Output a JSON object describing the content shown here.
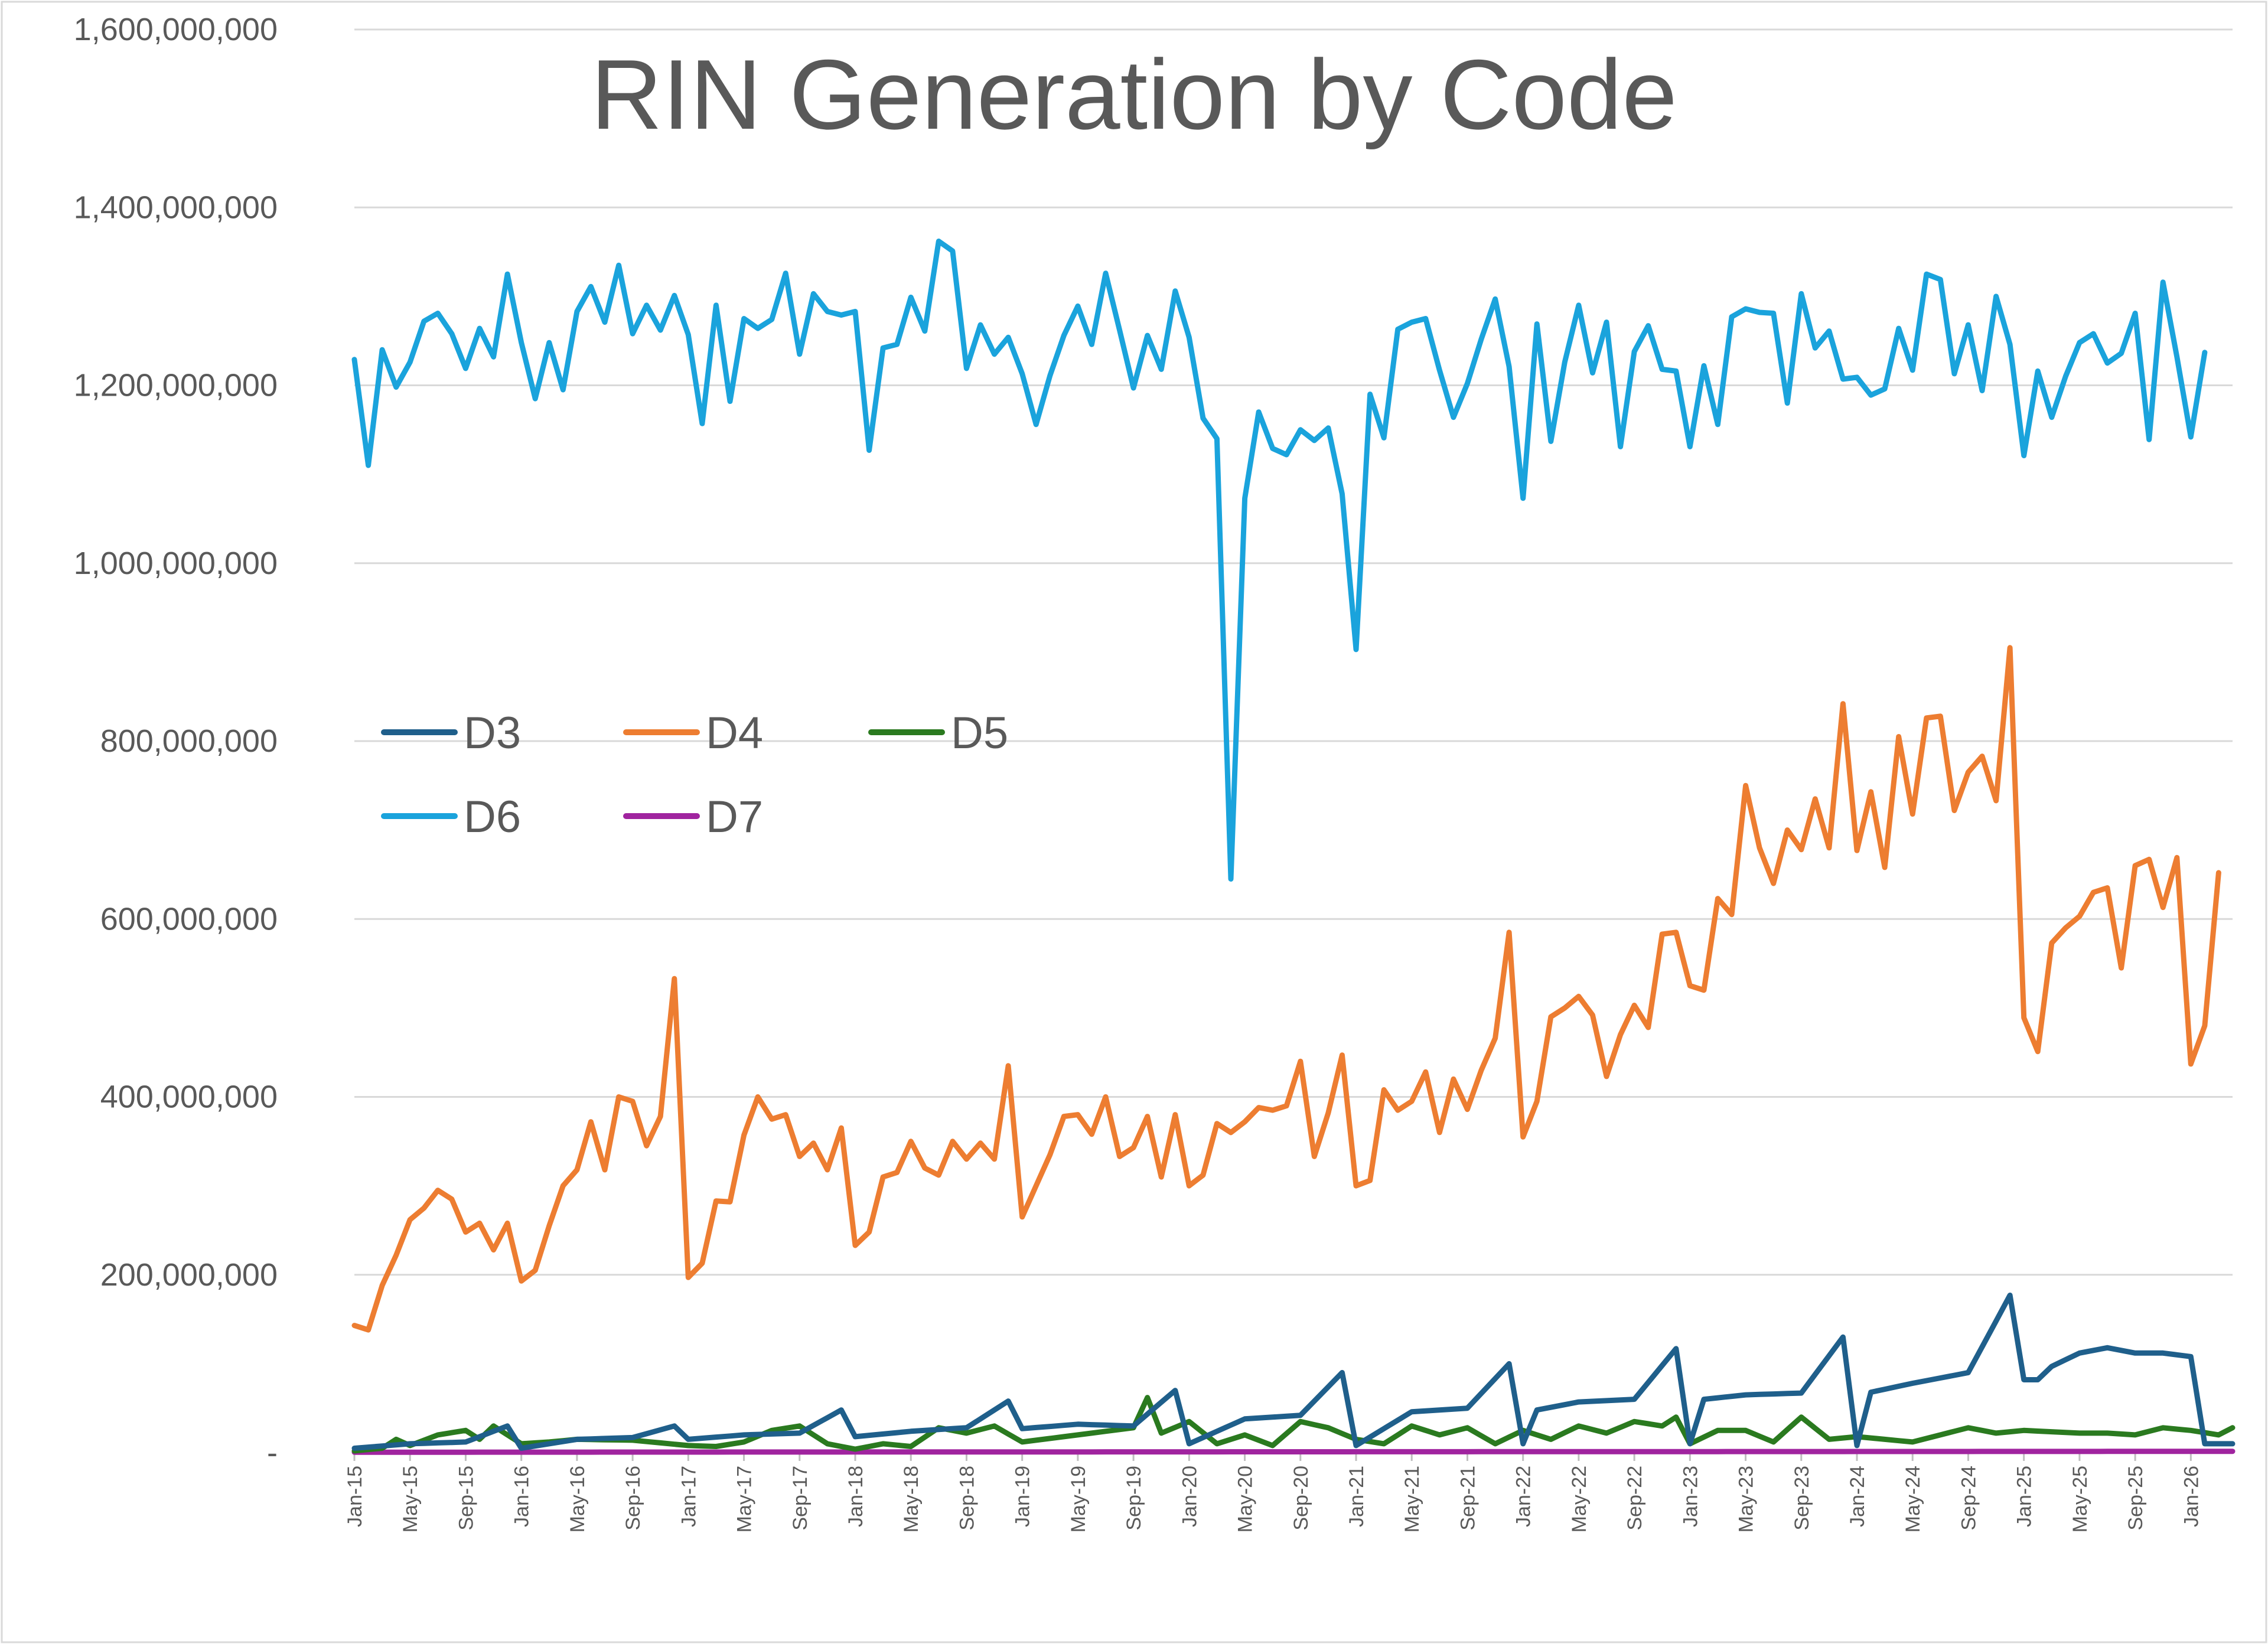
{
  "chart_data": {
    "type": "line",
    "title": "RIN Generation by Code",
    "xlabel": "",
    "ylabel": "",
    "ylim": [
      0,
      1600000000
    ],
    "y_ticks": [
      {
        "value": 0,
        "label": "-"
      },
      {
        "value": 200000000,
        "label": "200,000,000"
      },
      {
        "value": 400000000,
        "label": "400,000,000"
      },
      {
        "value": 600000000,
        "label": "600,000,000"
      },
      {
        "value": 800000000,
        "label": "800,000,000"
      },
      {
        "value": 1000000000,
        "label": "1,000,000,000"
      },
      {
        "value": 1200000000,
        "label": "1,200,000,000"
      },
      {
        "value": 1400000000,
        "label": "1,400,000,000"
      },
      {
        "value": 1600000000,
        "label": "1,600,000,000"
      }
    ],
    "gridlines": "horizontal",
    "x_start": "Jan-15",
    "x_end": "Apr-26",
    "x_ticks": [
      {
        "index": 0,
        "label": "Jan-15"
      },
      {
        "index": 4,
        "label": "May-15"
      },
      {
        "index": 8,
        "label": "Sep-15"
      },
      {
        "index": 12,
        "label": "Jan-16"
      },
      {
        "index": 16,
        "label": "May-16"
      },
      {
        "index": 20,
        "label": "Sep-16"
      },
      {
        "index": 24,
        "label": "Jan-17"
      },
      {
        "index": 28,
        "label": "May-17"
      },
      {
        "index": 32,
        "label": "Sep-17"
      },
      {
        "index": 36,
        "label": "Jan-18"
      },
      {
        "index": 40,
        "label": "May-18"
      },
      {
        "index": 44,
        "label": "Sep-18"
      },
      {
        "index": 48,
        "label": "Jan-19"
      },
      {
        "index": 52,
        "label": "May-19"
      },
      {
        "index": 56,
        "label": "Sep-19"
      },
      {
        "index": 60,
        "label": "Jan-20"
      },
      {
        "index": 64,
        "label": "May-20"
      },
      {
        "index": 68,
        "label": "Sep-20"
      },
      {
        "index": 72,
        "label": "Jan-21"
      },
      {
        "index": 76,
        "label": "May-21"
      },
      {
        "index": 80,
        "label": "Sep-21"
      },
      {
        "index": 84,
        "label": "Jan-22"
      },
      {
        "index": 88,
        "label": "May-22"
      },
      {
        "index": 92,
        "label": "Sep-22"
      },
      {
        "index": 96,
        "label": "Jan-23"
      },
      {
        "index": 100,
        "label": "May-23"
      },
      {
        "index": 104,
        "label": "Sep-23"
      },
      {
        "index": 108,
        "label": "Jan-24"
      },
      {
        "index": 112,
        "label": "May-24"
      },
      {
        "index": 116,
        "label": "Sep-24"
      },
      {
        "index": 120,
        "label": "Jan-25"
      },
      {
        "index": 124,
        "label": "May-25"
      },
      {
        "index": 128,
        "label": "Sep-25"
      },
      {
        "index": 132,
        "label": "Jan-26"
      }
    ],
    "legend_position": "middle-left",
    "series": [
      {
        "name": "D3",
        "color": "#1f5f8b",
        "anchors": [
          [
            0,
            5
          ],
          [
            4,
            10
          ],
          [
            8,
            12
          ],
          [
            11,
            30
          ],
          [
            12,
            5
          ],
          [
            16,
            15
          ],
          [
            20,
            17
          ],
          [
            23,
            30
          ],
          [
            24,
            15
          ],
          [
            28,
            20
          ],
          [
            32,
            22
          ],
          [
            35,
            48
          ],
          [
            36,
            18
          ],
          [
            40,
            24
          ],
          [
            44,
            28
          ],
          [
            47,
            58
          ],
          [
            48,
            27
          ],
          [
            52,
            32
          ],
          [
            56,
            30
          ],
          [
            59,
            70
          ],
          [
            60,
            10
          ],
          [
            64,
            38
          ],
          [
            68,
            42
          ],
          [
            71,
            90
          ],
          [
            72,
            8
          ],
          [
            76,
            46
          ],
          [
            80,
            50
          ],
          [
            83,
            100
          ],
          [
            84,
            10
          ],
          [
            85,
            48
          ],
          [
            88,
            57
          ],
          [
            92,
            60
          ],
          [
            95,
            117
          ],
          [
            96,
            10
          ],
          [
            97,
            60
          ],
          [
            100,
            65
          ],
          [
            104,
            67
          ],
          [
            107,
            130
          ],
          [
            108,
            8
          ],
          [
            109,
            68
          ],
          [
            112,
            78
          ],
          [
            116,
            90
          ],
          [
            119,
            177
          ],
          [
            120,
            82
          ],
          [
            121,
            82
          ],
          [
            122,
            97
          ],
          [
            124,
            112
          ],
          [
            126,
            118
          ],
          [
            128,
            112
          ],
          [
            130,
            112
          ],
          [
            132,
            108
          ],
          [
            133,
            10
          ]
        ]
      },
      {
        "name": "D4",
        "color": "#ed7d31",
        "values": [
          143,
          138,
          188,
          222,
          262,
          275,
          295,
          285,
          248,
          258,
          228,
          258,
          193,
          205,
          255,
          300,
          318,
          372,
          318,
          400,
          395,
          345,
          378,
          533,
          197,
          213,
          283,
          282,
          357,
          400,
          375,
          380,
          333,
          348,
          318,
          365,
          233,
          248,
          310,
          315,
          350,
          320,
          312,
          350,
          330,
          348,
          330,
          435,
          265,
          300,
          335,
          378,
          380,
          358,
          400,
          333,
          343,
          378,
          310,
          380,
          300,
          312,
          370,
          360,
          372,
          388,
          385,
          390,
          440,
          333,
          382,
          447,
          300,
          306,
          408,
          385,
          395,
          428,
          360,
          420,
          386,
          430,
          466,
          585,
          355,
          395,
          490,
          500,
          513,
          492,
          423,
          470,
          503,
          478,
          583,
          585,
          525,
          520,
          623,
          605,
          750,
          680,
          640,
          700,
          678,
          735,
          680,
          842,
          677,
          743,
          658,
          805,
          718,
          826,
          828,
          722,
          765,
          783,
          733,
          905,
          489,
          451,
          573,
          590,
          603,
          630,
          635,
          545,
          660,
          667,
          613,
          669,
          437,
          480,
          652
        ]
      },
      {
        "name": "D5",
        "color": "#2a7a1f",
        "anchors": [
          [
            0,
            2
          ],
          [
            2,
            5
          ],
          [
            3,
            15
          ],
          [
            4,
            8
          ],
          [
            6,
            20
          ],
          [
            8,
            25
          ],
          [
            9,
            15
          ],
          [
            10,
            30
          ],
          [
            11,
            20
          ],
          [
            12,
            10
          ],
          [
            14,
            12
          ],
          [
            16,
            15
          ],
          [
            20,
            14
          ],
          [
            24,
            8
          ],
          [
            26,
            7
          ],
          [
            28,
            12
          ],
          [
            30,
            25
          ],
          [
            32,
            30
          ],
          [
            34,
            10
          ],
          [
            36,
            4
          ],
          [
            38,
            10
          ],
          [
            40,
            7
          ],
          [
            42,
            28
          ],
          [
            44,
            22
          ],
          [
            46,
            30
          ],
          [
            48,
            12
          ],
          [
            52,
            20
          ],
          [
            56,
            28
          ],
          [
            57,
            62
          ],
          [
            58,
            22
          ],
          [
            60,
            35
          ],
          [
            62,
            10
          ],
          [
            64,
            20
          ],
          [
            66,
            8
          ],
          [
            68,
            35
          ],
          [
            70,
            28
          ],
          [
            72,
            15
          ],
          [
            74,
            10
          ],
          [
            76,
            30
          ],
          [
            78,
            20
          ],
          [
            80,
            28
          ],
          [
            82,
            10
          ],
          [
            84,
            25
          ],
          [
            86,
            15
          ],
          [
            88,
            30
          ],
          [
            90,
            22
          ],
          [
            92,
            35
          ],
          [
            94,
            30
          ],
          [
            95,
            40
          ],
          [
            96,
            10
          ],
          [
            98,
            25
          ],
          [
            100,
            25
          ],
          [
            102,
            12
          ],
          [
            104,
            40
          ],
          [
            106,
            15
          ],
          [
            108,
            18
          ],
          [
            112,
            12
          ],
          [
            114,
            20
          ],
          [
            116,
            28
          ],
          [
            118,
            22
          ],
          [
            120,
            25
          ],
          [
            124,
            22
          ],
          [
            126,
            22
          ],
          [
            128,
            20
          ],
          [
            130,
            28
          ],
          [
            132,
            25
          ],
          [
            134,
            20
          ],
          [
            135,
            28
          ]
        ]
      },
      {
        "name": "D6",
        "color": "#1aa3dc",
        "values": [
          1229,
          1110,
          1240,
          1198,
          1226,
          1272,
          1281,
          1258,
          1219,
          1264,
          1232,
          1325,
          1248,
          1185,
          1248,
          1195,
          1283,
          1311,
          1271,
          1335,
          1258,
          1290,
          1262,
          1301,
          1257,
          1157,
          1290,
          1182,
          1275,
          1264,
          1274,
          1326,
          1235,
          1303,
          1283,
          1279,
          1283,
          1127,
          1242,
          1246,
          1299,
          1261,
          1362,
          1351,
          1219,
          1268,
          1235,
          1254,
          1213,
          1156,
          1211,
          1256,
          1289,
          1246,
          1326,
          1262,
          1197,
          1256,
          1218,
          1306,
          1254,
          1163,
          1140,
          645,
          1073,
          1170,
          1129,
          1122,
          1150,
          1138,
          1152,
          1078,
          903,
          1190,
          1141,
          1263,
          1271,
          1275,
          1217,
          1164,
          1202,
          1252,
          1297,
          1221,
          1073,
          1269,
          1137,
          1226,
          1290,
          1214,
          1271,
          1131,
          1238,
          1267,
          1218,
          1216,
          1131,
          1222,
          1156,
          1277,
          1286,
          1282,
          1281,
          1180,
          1303,
          1242,
          1261,
          1207,
          1209,
          1189,
          1196,
          1264,
          1217,
          1325,
          1319,
          1213,
          1268,
          1194,
          1300,
          1246,
          1121,
          1216,
          1164,
          1210,
          1248,
          1258,
          1225,
          1236,
          1281,
          1139,
          1316,
          1232,
          1142,
          1237
        ]
      },
      {
        "name": "D7",
        "color": "#a0249f",
        "anchors": [
          [
            0,
            0.5
          ],
          [
            135,
            1.5
          ]
        ]
      }
    ],
    "value_unit_note": "series values in millions of RINs; D3/D5/D7 given as [month_index, value] anchor points"
  }
}
